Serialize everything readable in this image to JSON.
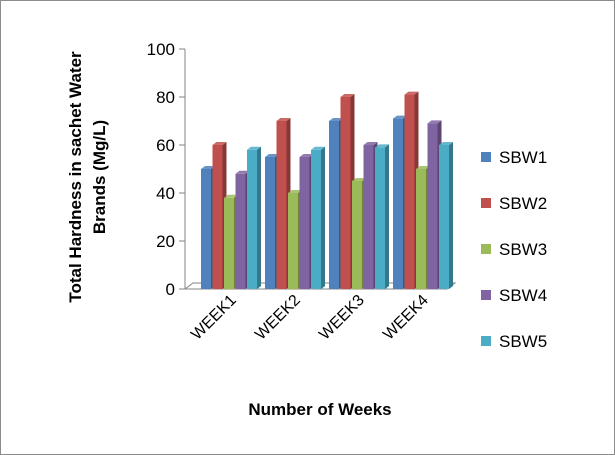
{
  "chart_data": {
    "type": "bar",
    "style": "3d-clustered-column",
    "title": "",
    "xlabel": "Number of Weeks",
    "ylabel": "Total Hardness in sachet Water Brands (Mg/L)",
    "ylabel_lines": [
      "Total Hardness in sachet Water",
      "Brands (Mg/L)"
    ],
    "ylim": [
      0,
      100
    ],
    "yticks": [
      0,
      20,
      40,
      60,
      80,
      100
    ],
    "grid": false,
    "legend": "right",
    "categories": [
      "WEEK1",
      "WEEK2",
      "WEEK3",
      "WEEK4"
    ],
    "series": [
      {
        "name": "SBW1",
        "color": "#4f81bd",
        "values": [
          50,
          55,
          70,
          71
        ]
      },
      {
        "name": "SBW2",
        "color": "#c0504d",
        "values": [
          60,
          70,
          80,
          81
        ]
      },
      {
        "name": "SBW3",
        "color": "#9bbb59",
        "values": [
          38,
          40,
          45,
          50
        ]
      },
      {
        "name": "SBW4",
        "color": "#8064a2",
        "values": [
          48,
          55,
          60,
          69
        ]
      },
      {
        "name": "SBW5",
        "color": "#4bacc6",
        "values": [
          58,
          58,
          59,
          60
        ]
      }
    ]
  }
}
